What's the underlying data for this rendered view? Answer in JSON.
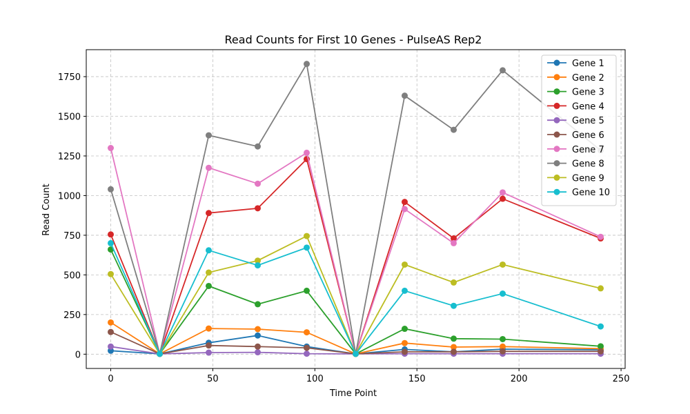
{
  "chart_data": {
    "type": "line",
    "title": "Read Counts for First 10 Genes - PulseAS Rep2",
    "xlabel": "Time Point",
    "ylabel": "Read Count",
    "xlim": [
      -12,
      252
    ],
    "ylim": [
      -90,
      1920
    ],
    "xticks": [
      0,
      50,
      100,
      150,
      200,
      250
    ],
    "yticks": [
      0,
      250,
      500,
      750,
      1000,
      1250,
      1500,
      1750
    ],
    "grid": true,
    "legend_position": "top-right",
    "x": [
      0,
      24,
      48,
      72,
      96,
      120,
      144,
      168,
      192,
      240
    ],
    "series": [
      {
        "name": "Gene 1",
        "color": "#1f77b4",
        "values": [
          22,
          2,
          72,
          118,
          48,
          2,
          30,
          15,
          32,
          28
        ]
      },
      {
        "name": "Gene 2",
        "color": "#ff7f0e",
        "values": [
          200,
          2,
          162,
          158,
          138,
          2,
          70,
          45,
          48,
          35
        ]
      },
      {
        "name": "Gene 3",
        "color": "#2ca02c",
        "values": [
          660,
          2,
          430,
          315,
          400,
          2,
          160,
          98,
          95,
          50
        ]
      },
      {
        "name": "Gene 4",
        "color": "#d62728",
        "values": [
          755,
          2,
          890,
          920,
          1230,
          2,
          960,
          730,
          980,
          730
        ]
      },
      {
        "name": "Gene 5",
        "color": "#9467bd",
        "values": [
          48,
          2,
          10,
          12,
          3,
          2,
          3,
          3,
          3,
          3
        ]
      },
      {
        "name": "Gene 6",
        "color": "#8c564b",
        "values": [
          140,
          2,
          55,
          48,
          40,
          2,
          15,
          15,
          18,
          18
        ]
      },
      {
        "name": "Gene 7",
        "color": "#e377c2",
        "values": [
          1300,
          2,
          1175,
          1075,
          1270,
          2,
          915,
          700,
          1020,
          740
        ]
      },
      {
        "name": "Gene 8",
        "color": "#7f7f7f",
        "values": [
          1040,
          2,
          1380,
          1310,
          1830,
          2,
          1630,
          1415,
          1790,
          1285
        ]
      },
      {
        "name": "Gene 9",
        "color": "#bcbd22",
        "values": [
          505,
          2,
          515,
          590,
          745,
          2,
          565,
          452,
          565,
          415
        ]
      },
      {
        "name": "Gene 10",
        "color": "#17becf",
        "values": [
          700,
          2,
          655,
          560,
          672,
          2,
          400,
          305,
          382,
          175
        ]
      }
    ]
  }
}
